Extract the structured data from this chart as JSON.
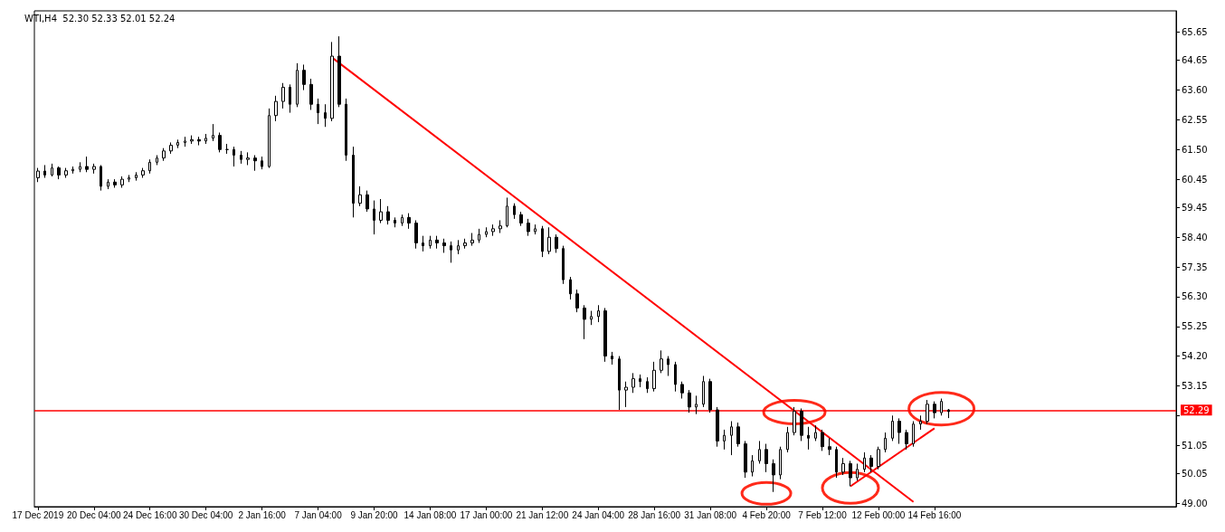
{
  "chart_data": {
    "type": "candlestick",
    "title": "WTI,H4  52.30 52.33 52.01 52.24",
    "categories": [
      "17 Dec 2019",
      null,
      null,
      null,
      null,
      null,
      null,
      null,
      "20 Dec 04:00",
      null,
      null,
      null,
      null,
      null,
      null,
      null,
      "24 Dec 16:00",
      null,
      null,
      null,
      null,
      null,
      null,
      null,
      "30 Dec 04:00",
      null,
      null,
      null,
      null,
      null,
      null,
      null,
      "2 Jan 16:00",
      null,
      null,
      null,
      null,
      null,
      null,
      null,
      "7 Jan 04:00",
      null,
      null,
      null,
      null,
      null,
      null,
      null,
      "9 Jan 20:00",
      null,
      null,
      null,
      null,
      null,
      null,
      null,
      "14 Jan 08:00",
      null,
      null,
      null,
      null,
      null,
      null,
      null,
      "17 Jan 00:00",
      null,
      null,
      null,
      null,
      null,
      null,
      null,
      "21 Jan 12:00",
      null,
      null,
      null,
      null,
      null,
      null,
      null,
      "24 Jan 04:00",
      null,
      null,
      null,
      null,
      null,
      null,
      null,
      "28 Jan 16:00",
      null,
      null,
      null,
      null,
      null,
      null,
      null,
      "31 Jan 08:00",
      null,
      null,
      null,
      null,
      null,
      null,
      null,
      "4 Feb 20:00",
      null,
      null,
      null,
      null,
      null,
      null,
      null,
      "7 Feb 12:00",
      null,
      null,
      null,
      null,
      null,
      null,
      null,
      "12 Feb 00:00",
      null,
      null,
      null,
      null,
      null,
      null,
      null,
      "14 Feb 16:00",
      null,
      null,
      null,
      null,
      null,
      null,
      null,
      null,
      null,
      null,
      null,
      null,
      null,
      null,
      null,
      null,
      null,
      null,
      null,
      null,
      null,
      null,
      null,
      null,
      null,
      null,
      null,
      null,
      null,
      null,
      null,
      null,
      null,
      null
    ],
    "ohlc": [
      [
        60.5,
        60.85,
        60.35,
        60.74
      ],
      [
        60.74,
        60.95,
        60.5,
        60.6
      ],
      [
        60.6,
        61.0,
        60.55,
        60.85
      ],
      [
        60.85,
        60.9,
        60.45,
        60.6
      ],
      [
        60.6,
        60.85,
        60.5,
        60.75
      ],
      [
        60.75,
        60.9,
        60.65,
        60.8
      ],
      [
        60.8,
        61.05,
        60.7,
        60.9
      ],
      [
        60.9,
        61.25,
        60.7,
        60.8
      ],
      [
        60.8,
        61.0,
        60.65,
        60.9
      ],
      [
        60.9,
        60.95,
        60.05,
        60.2
      ],
      [
        60.2,
        60.45,
        60.1,
        60.35
      ],
      [
        60.35,
        60.45,
        60.15,
        60.25
      ],
      [
        60.25,
        60.55,
        60.15,
        60.45
      ],
      [
        60.45,
        60.6,
        60.35,
        60.5
      ],
      [
        60.5,
        60.7,
        60.4,
        60.6
      ],
      [
        60.6,
        60.85,
        60.5,
        60.75
      ],
      [
        60.75,
        61.15,
        60.65,
        61.05
      ],
      [
        61.05,
        61.3,
        60.95,
        61.2
      ],
      [
        61.2,
        61.55,
        61.1,
        61.45
      ],
      [
        61.45,
        61.75,
        61.35,
        61.65
      ],
      [
        61.65,
        61.85,
        61.55,
        61.75
      ],
      [
        61.75,
        61.95,
        61.6,
        61.8
      ],
      [
        61.8,
        62.0,
        61.7,
        61.85
      ],
      [
        61.85,
        61.95,
        61.65,
        61.8
      ],
      [
        61.8,
        62.05,
        61.7,
        61.9
      ],
      [
        61.9,
        62.4,
        61.8,
        62.0
      ],
      [
        62.0,
        62.1,
        61.4,
        61.5
      ],
      [
        61.5,
        61.7,
        61.35,
        61.5
      ],
      [
        61.5,
        61.6,
        60.9,
        61.3
      ],
      [
        61.3,
        61.45,
        61.0,
        61.15
      ],
      [
        61.15,
        61.4,
        60.95,
        61.2
      ],
      [
        61.2,
        61.3,
        60.75,
        61.1
      ],
      [
        61.1,
        61.25,
        60.8,
        60.9
      ],
      [
        60.9,
        62.95,
        60.85,
        62.7
      ],
      [
        62.7,
        63.4,
        62.5,
        63.2
      ],
      [
        63.2,
        63.85,
        62.95,
        63.7
      ],
      [
        63.7,
        63.8,
        62.8,
        63.1
      ],
      [
        63.1,
        64.55,
        63.0,
        64.3
      ],
      [
        64.3,
        64.5,
        63.6,
        63.8
      ],
      [
        63.8,
        64.0,
        62.9,
        63.1
      ],
      [
        63.1,
        63.3,
        62.4,
        62.8
      ],
      [
        62.8,
        63.1,
        62.3,
        62.6
      ],
      [
        62.6,
        65.3,
        62.5,
        64.8
      ],
      [
        64.8,
        65.5,
        63.0,
        63.1
      ],
      [
        63.1,
        63.3,
        61.1,
        61.3
      ],
      [
        61.3,
        61.6,
        59.1,
        59.6
      ],
      [
        59.6,
        60.2,
        59.5,
        59.9
      ],
      [
        59.9,
        60.05,
        59.3,
        59.4
      ],
      [
        59.4,
        59.7,
        58.5,
        59.0
      ],
      [
        59.0,
        59.75,
        58.9,
        59.3
      ],
      [
        59.3,
        59.5,
        58.85,
        59.0
      ],
      [
        59.0,
        59.1,
        58.75,
        58.9
      ],
      [
        58.9,
        59.2,
        58.8,
        59.1
      ],
      [
        59.1,
        59.25,
        58.7,
        58.9
      ],
      [
        58.9,
        59.0,
        58.0,
        58.2
      ],
      [
        58.2,
        58.45,
        57.9,
        58.1
      ],
      [
        58.1,
        58.45,
        58.0,
        58.3
      ],
      [
        58.3,
        58.45,
        58.0,
        58.2
      ],
      [
        58.2,
        58.35,
        57.85,
        58.1
      ],
      [
        58.1,
        58.25,
        57.5,
        57.95
      ],
      [
        57.95,
        58.3,
        57.8,
        58.1
      ],
      [
        58.1,
        58.35,
        58.0,
        58.2
      ],
      [
        58.2,
        58.55,
        58.1,
        58.3
      ],
      [
        58.3,
        58.7,
        58.2,
        58.5
      ],
      [
        58.5,
        58.75,
        58.4,
        58.6
      ],
      [
        58.6,
        58.85,
        58.45,
        58.7
      ],
      [
        58.7,
        59.0,
        58.55,
        58.8
      ],
      [
        58.8,
        59.8,
        58.75,
        59.5
      ],
      [
        59.5,
        59.6,
        59.05,
        59.2
      ],
      [
        59.2,
        59.3,
        58.8,
        58.9
      ],
      [
        58.9,
        59.05,
        58.45,
        58.6
      ],
      [
        58.6,
        58.85,
        58.5,
        58.7
      ],
      [
        58.7,
        58.8,
        57.7,
        57.9
      ],
      [
        57.9,
        58.75,
        57.8,
        58.4
      ],
      [
        58.4,
        58.5,
        57.85,
        58.0
      ],
      [
        58.0,
        58.1,
        56.75,
        56.9
      ],
      [
        56.9,
        57.0,
        56.2,
        56.4
      ],
      [
        56.4,
        56.55,
        55.75,
        55.9
      ],
      [
        55.9,
        56.0,
        54.8,
        55.5
      ],
      [
        55.5,
        55.8,
        55.3,
        55.6
      ],
      [
        55.6,
        56.0,
        55.4,
        55.8
      ],
      [
        55.8,
        55.9,
        54.0,
        54.2
      ],
      [
        54.2,
        54.35,
        53.9,
        54.1
      ],
      [
        54.1,
        54.2,
        52.3,
        53.0
      ],
      [
        53.0,
        53.3,
        52.4,
        53.1
      ],
      [
        53.1,
        53.6,
        52.9,
        53.4
      ],
      [
        53.4,
        53.55,
        53.1,
        53.3
      ],
      [
        53.3,
        53.45,
        52.9,
        53.05
      ],
      [
        53.05,
        54.0,
        52.95,
        53.7
      ],
      [
        53.7,
        54.4,
        53.6,
        54.1
      ],
      [
        54.1,
        54.2,
        53.5,
        53.9
      ],
      [
        53.9,
        54.0,
        52.95,
        53.2
      ],
      [
        53.2,
        53.3,
        52.7,
        52.9
      ],
      [
        52.9,
        53.0,
        52.2,
        52.4
      ],
      [
        52.4,
        52.8,
        52.15,
        52.5
      ],
      [
        52.5,
        53.5,
        52.4,
        53.3
      ],
      [
        53.3,
        53.4,
        52.2,
        52.3
      ],
      [
        52.3,
        52.4,
        51.0,
        51.2
      ],
      [
        51.2,
        51.6,
        50.9,
        51.4
      ],
      [
        51.4,
        51.9,
        50.7,
        51.7
      ],
      [
        51.7,
        51.85,
        51.0,
        51.1
      ],
      [
        51.1,
        51.2,
        49.9,
        50.1
      ],
      [
        50.1,
        50.7,
        49.95,
        50.5
      ],
      [
        50.5,
        51.2,
        50.4,
        50.9
      ],
      [
        50.9,
        51.1,
        50.1,
        50.4
      ],
      [
        50.4,
        50.55,
        49.4,
        50.0
      ],
      [
        50.0,
        51.0,
        49.85,
        50.9
      ],
      [
        50.9,
        51.7,
        50.8,
        51.5
      ],
      [
        51.5,
        52.4,
        51.4,
        52.25
      ],
      [
        52.25,
        52.35,
        51.2,
        51.4
      ],
      [
        51.4,
        51.7,
        50.9,
        51.3
      ],
      [
        51.3,
        51.75,
        51.2,
        51.5
      ],
      [
        51.5,
        51.6,
        50.85,
        51.0
      ],
      [
        51.0,
        51.3,
        50.7,
        50.9
      ],
      [
        50.9,
        51.0,
        49.9,
        50.1
      ],
      [
        50.1,
        50.6,
        50.0,
        50.4
      ],
      [
        50.4,
        50.5,
        49.6,
        49.9
      ],
      [
        49.9,
        50.4,
        49.8,
        50.2
      ],
      [
        50.2,
        50.8,
        50.1,
        50.6
      ],
      [
        50.6,
        50.7,
        50.1,
        50.3
      ],
      [
        50.3,
        51.0,
        50.2,
        50.9
      ],
      [
        50.9,
        51.5,
        50.8,
        51.3
      ],
      [
        51.3,
        52.1,
        51.2,
        51.9
      ],
      [
        51.9,
        52.0,
        51.1,
        51.5
      ],
      [
        51.5,
        51.6,
        50.9,
        51.1
      ],
      [
        51.1,
        51.9,
        51.0,
        51.8
      ],
      [
        51.8,
        52.1,
        51.6,
        51.9
      ],
      [
        51.9,
        52.65,
        51.8,
        52.5
      ],
      [
        52.5,
        52.6,
        52.0,
        52.2
      ],
      [
        52.2,
        52.7,
        52.1,
        52.6
      ],
      [
        52.3,
        52.33,
        52.01,
        52.24
      ],
      null,
      null,
      null,
      null,
      null,
      null,
      null,
      null,
      null,
      null,
      null,
      null,
      null,
      null,
      null,
      null,
      null,
      null,
      null,
      null,
      null,
      null,
      null,
      null,
      null,
      null,
      null,
      null,
      null,
      null,
      null,
      null
    ],
    "series": [
      {
        "type": "line",
        "color": "#ff0000",
        "values": [
          null,
          null,
          null,
          null,
          null,
          null,
          null,
          null,
          null,
          null,
          null,
          null,
          null,
          null,
          null,
          null,
          null,
          null,
          null,
          null,
          null,
          null,
          null,
          null,
          null,
          null,
          null,
          null,
          null,
          null,
          null,
          null,
          null,
          null,
          null,
          null,
          null,
          null,
          null,
          null,
          null,
          null,
          64.75,
          null,
          null,
          null,
          null,
          null,
          null,
          null,
          null,
          null,
          null,
          null,
          null,
          null,
          null,
          null,
          null,
          null,
          null,
          null,
          null,
          null,
          null,
          null,
          null,
          null,
          null,
          null,
          null,
          null,
          null,
          null,
          null,
          null,
          null,
          null,
          null,
          null,
          null,
          null,
          null,
          null,
          null,
          null,
          null,
          null,
          null,
          null,
          null,
          null,
          null,
          null,
          null,
          null,
          null,
          null,
          null,
          null,
          null,
          null,
          null,
          null,
          null,
          null,
          null,
          null,
          null,
          null,
          null,
          null,
          null,
          null,
          null,
          null,
          null,
          null,
          null,
          null,
          null,
          null,
          null,
          null,
          null,
          49.05,
          null,
          null,
          null,
          null,
          null,
          null,
          null,
          null,
          null,
          null,
          null,
          null,
          null,
          null,
          null,
          null,
          null,
          null,
          null,
          null,
          null,
          null,
          null,
          null,
          null,
          null,
          null,
          null,
          null,
          null,
          null,
          null,
          null,
          null,
          null,
          null,
          null
        ]
      },
      {
        "type": "line",
        "color": "#ff0000",
        "values": [
          null,
          null,
          null,
          null,
          null,
          null,
          null,
          null,
          null,
          null,
          null,
          null,
          null,
          null,
          null,
          null,
          null,
          null,
          null,
          null,
          null,
          null,
          null,
          null,
          null,
          null,
          null,
          null,
          null,
          null,
          null,
          null,
          null,
          null,
          null,
          null,
          null,
          null,
          null,
          null,
          null,
          null,
          null,
          null,
          null,
          null,
          null,
          null,
          null,
          null,
          null,
          null,
          null,
          null,
          null,
          null,
          null,
          null,
          null,
          null,
          null,
          null,
          null,
          null,
          null,
          null,
          null,
          null,
          null,
          null,
          null,
          null,
          null,
          null,
          null,
          null,
          null,
          null,
          null,
          null,
          null,
          null,
          null,
          null,
          null,
          null,
          null,
          null,
          null,
          null,
          null,
          null,
          null,
          null,
          null,
          null,
          null,
          null,
          null,
          null,
          null,
          null,
          null,
          null,
          null,
          null,
          null,
          null,
          null,
          null,
          null,
          null,
          null,
          null,
          null,
          null,
          49.6,
          null,
          null,
          null,
          null,
          null,
          null,
          null,
          null,
          null,
          null,
          null,
          51.65,
          null,
          null,
          null,
          null,
          null,
          null,
          null,
          null,
          null,
          null,
          null,
          null,
          null,
          null,
          null,
          null,
          null,
          null,
          null,
          null,
          null,
          null,
          null,
          null,
          null,
          null,
          null,
          null,
          null,
          null,
          null,
          null,
          null,
          null
        ]
      }
    ],
    "ref_lines": [
      {
        "axis": "y",
        "value": 52.29,
        "label": "52.29",
        "color": "#ff0000"
      }
    ],
    "ylim": [
      48.88,
      66.4
    ],
    "yticks": [
      65.65,
      64.65,
      {
        "value": 63.6,
        "label": "63.60"
      },
      62.55,
      {
        "value": 61.5,
        "label": "61.50"
      },
      60.45,
      59.45,
      {
        "value": 58.4,
        "label": "58.40"
      },
      57.35,
      {
        "value": 56.3,
        "label": "56.30"
      },
      55.25,
      {
        "value": 54.2,
        "label": "54.20"
      },
      53.15,
      {
        "value": 52.1,
        "label": null
      },
      51.05,
      50.05,
      {
        "value": 49,
        "label": "49.00"
      }
    ],
    "grid": false
  }
}
